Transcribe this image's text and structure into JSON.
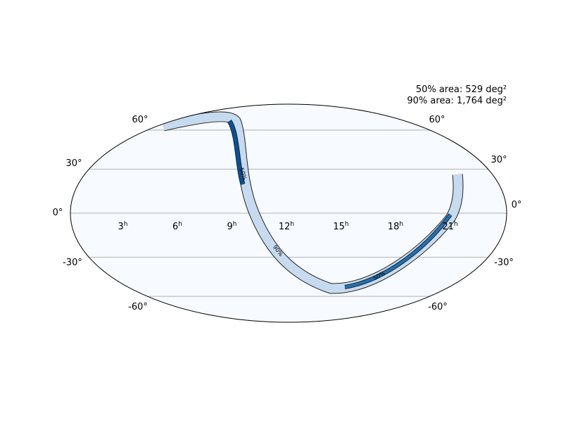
{
  "annotation": {
    "lines": [
      "50% area: 529 deg²",
      "90% area: 1,764 deg²"
    ]
  },
  "lat_labels": {
    "left": [
      "60°",
      "30°",
      "0°",
      "-30°",
      "-60°"
    ],
    "right": [
      "60°",
      "30°",
      "0°",
      "-30°",
      "-60°"
    ]
  },
  "ra_labels": [
    {
      "hour": "21",
      "unit": "h"
    },
    {
      "hour": "18",
      "unit": "h"
    },
    {
      "hour": "15",
      "unit": "h"
    },
    {
      "hour": "12",
      "unit": "h"
    },
    {
      "hour": "9",
      "unit": "h"
    },
    {
      "hour": "6",
      "unit": "h"
    },
    {
      "hour": "3",
      "unit": "h"
    }
  ],
  "contour_labels": [
    "50%",
    "90%",
    "50%"
  ]
}
